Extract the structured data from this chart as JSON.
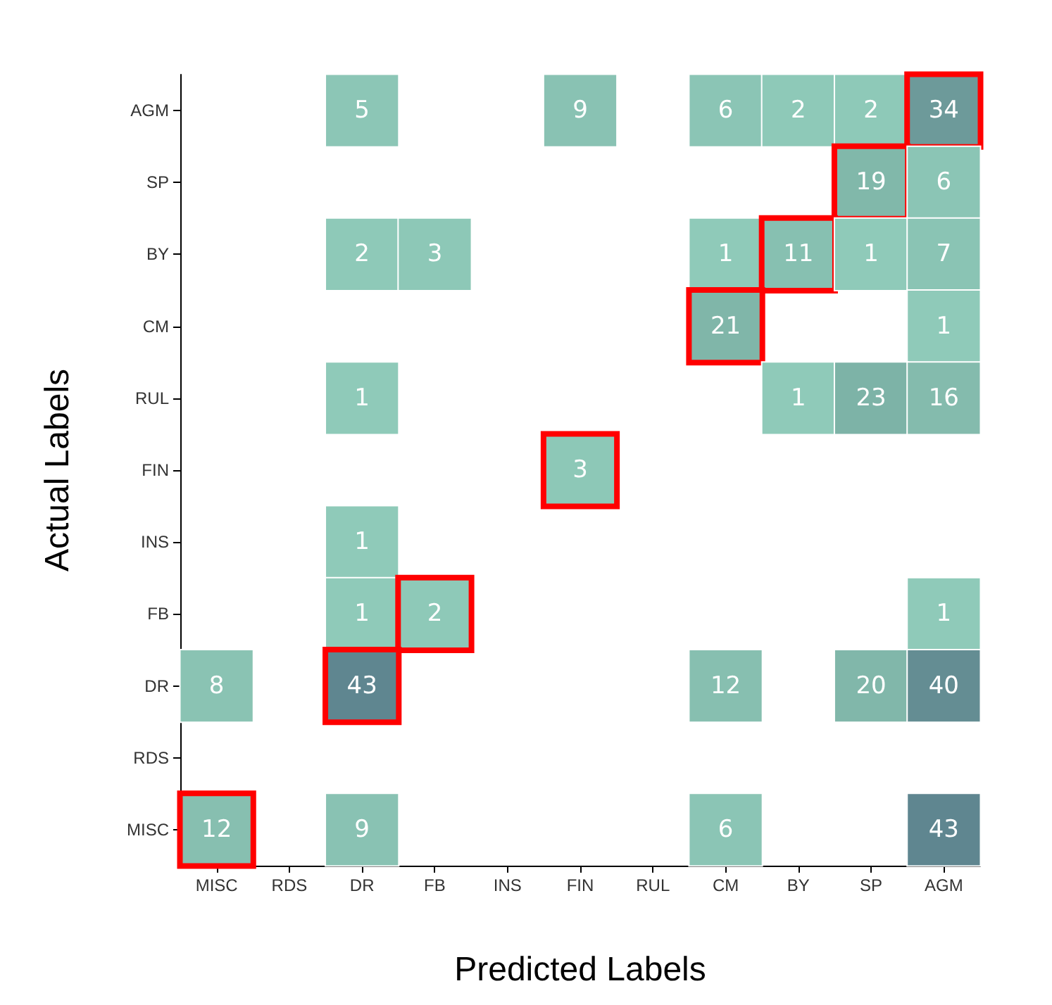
{
  "chart_data": {
    "type": "heatmap",
    "xlabel": "Predicted Labels",
    "ylabel": "Actual Labels",
    "categories": [
      "MISC",
      "RDS",
      "DR",
      "FB",
      "INS",
      "FIN",
      "RUL",
      "CM",
      "BY",
      "SP",
      "AGM"
    ],
    "y_categories": [
      "AGM",
      "SP",
      "BY",
      "CM",
      "RUL",
      "FIN",
      "INS",
      "FB",
      "DR",
      "RDS",
      "MISC"
    ],
    "cells": [
      [
        null,
        null,
        5,
        null,
        null,
        9,
        null,
        6,
        2,
        2,
        34
      ],
      [
        null,
        null,
        null,
        null,
        null,
        null,
        null,
        null,
        null,
        19,
        6
      ],
      [
        null,
        null,
        2,
        3,
        null,
        null,
        null,
        1,
        11,
        1,
        7
      ],
      [
        null,
        null,
        null,
        null,
        null,
        null,
        null,
        21,
        null,
        null,
        1
      ],
      [
        null,
        null,
        1,
        null,
        null,
        null,
        null,
        null,
        1,
        23,
        16
      ],
      [
        null,
        null,
        null,
        null,
        null,
        3,
        null,
        null,
        null,
        null,
        null
      ],
      [
        null,
        null,
        1,
        null,
        null,
        null,
        null,
        null,
        null,
        null,
        null
      ],
      [
        null,
        null,
        1,
        2,
        null,
        null,
        null,
        null,
        null,
        null,
        1
      ],
      [
        8,
        null,
        43,
        null,
        null,
        null,
        null,
        12,
        null,
        20,
        40
      ],
      [
        null,
        null,
        null,
        null,
        null,
        null,
        null,
        null,
        null,
        null,
        null
      ],
      [
        12,
        null,
        9,
        null,
        null,
        null,
        null,
        6,
        null,
        null,
        43
      ]
    ],
    "data_labels": true
  }
}
